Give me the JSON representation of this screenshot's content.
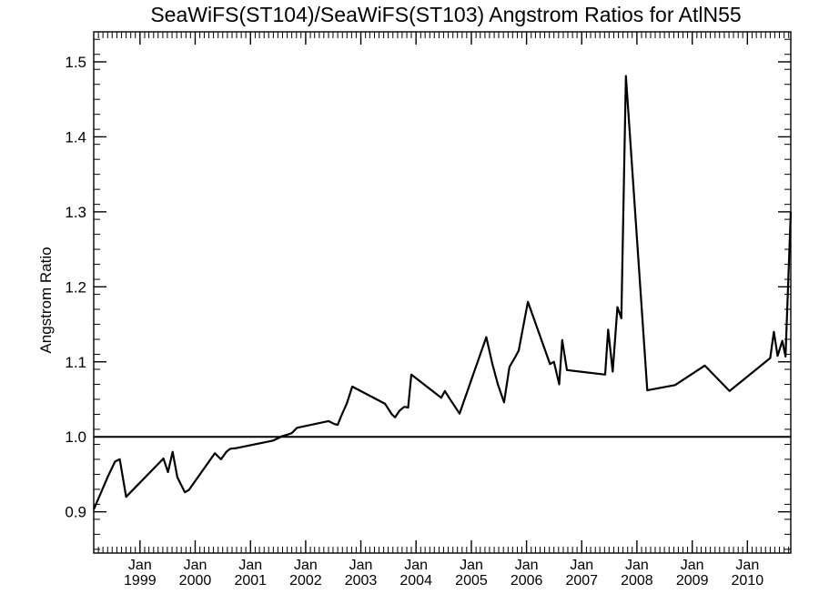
{
  "chart_data": {
    "type": "line",
    "title": "SeaWiFS(ST104)/SeaWiFS(ST103)  Angstrom Ratios for AtlN55",
    "ylabel": "Angstrom Ratio",
    "xlabel": "",
    "xlim": [
      "1998-03-01",
      "2010-10-15"
    ],
    "ylim": [
      0.845,
      1.54
    ],
    "yticks": [
      0.9,
      1.0,
      1.1,
      1.2,
      1.3,
      1.4,
      1.5
    ],
    "ytick_labels": [
      "0.9",
      "1.0",
      "1.1",
      "1.2",
      "1.3",
      "1.4",
      "1.5"
    ],
    "xticks": [
      {
        "date": "1999-01-01",
        "month": "Jan",
        "year": "1999"
      },
      {
        "date": "2000-01-01",
        "month": "Jan",
        "year": "2000"
      },
      {
        "date": "2001-01-01",
        "month": "Jan",
        "year": "2001"
      },
      {
        "date": "2002-01-01",
        "month": "Jan",
        "year": "2002"
      },
      {
        "date": "2003-01-01",
        "month": "Jan",
        "year": "2003"
      },
      {
        "date": "2004-01-01",
        "month": "Jan",
        "year": "2004"
      },
      {
        "date": "2005-01-01",
        "month": "Jan",
        "year": "2005"
      },
      {
        "date": "2006-01-01",
        "month": "Jan",
        "year": "2006"
      },
      {
        "date": "2007-01-01",
        "month": "Jan",
        "year": "2007"
      },
      {
        "date": "2008-01-01",
        "month": "Jan",
        "year": "2008"
      },
      {
        "date": "2009-01-01",
        "month": "Jan",
        "year": "2009"
      },
      {
        "date": "2010-01-01",
        "month": "Jan",
        "year": "2010"
      }
    ],
    "reference_line": 1.0,
    "grid": false,
    "series": [
      {
        "x": [
          "1998-03-01",
          "1998-06-05",
          "1998-07-20",
          "1998-08-20",
          "1998-10-01",
          "1999-06-05",
          "1999-07-05",
          "1999-08-05",
          "1999-09-05",
          "1999-10-25",
          "1999-11-20",
          "2000-05-10",
          "2000-06-20",
          "2000-07-25",
          "2000-08-20",
          "2000-10-01",
          "2001-06-01",
          "2001-08-01",
          "2001-09-05",
          "2001-10-01",
          "2001-11-05",
          "2002-06-01",
          "2002-07-10",
          "2002-08-01",
          "2002-08-25",
          "2002-10-01",
          "2002-11-05",
          "2003-06-10",
          "2003-07-25",
          "2003-08-15",
          "2003-09-15",
          "2003-10-15",
          "2003-11-10",
          "2003-12-01",
          "2004-06-15",
          "2004-07-10",
          "2004-08-10",
          "2004-10-15",
          "2005-04-10",
          "2005-05-20",
          "2005-06-25",
          "2005-08-05",
          "2005-09-10",
          "2005-10-20",
          "2005-11-10",
          "2006-01-10",
          "2006-06-05",
          "2006-07-01",
          "2006-08-05",
          "2006-08-25",
          "2006-09-25",
          "2007-06-05",
          "2007-06-25",
          "2007-07-25",
          "2007-08-25",
          "2007-09-20",
          "2007-10-20",
          "2008-03-10",
          "2008-09-10",
          "2009-03-25",
          "2009-09-05",
          "2010-06-01",
          "2010-06-25",
          "2010-07-20",
          "2010-08-20",
          "2010-09-10",
          "2010-10-15"
        ],
        "y": [
          0.903,
          0.948,
          0.967,
          0.97,
          0.92,
          0.971,
          0.953,
          0.98,
          0.946,
          0.926,
          0.929,
          0.978,
          0.97,
          0.98,
          0.984,
          0.985,
          0.995,
          1.001,
          1.003,
          1.005,
          1.012,
          1.021,
          1.017,
          1.016,
          1.028,
          1.045,
          1.067,
          1.044,
          1.03,
          1.026,
          1.035,
          1.04,
          1.039,
          1.083,
          1.052,
          1.061,
          1.051,
          1.031,
          1.133,
          1.097,
          1.07,
          1.046,
          1.093,
          1.107,
          1.115,
          1.18,
          1.097,
          1.1,
          1.07,
          1.129,
          1.089,
          1.083,
          1.143,
          1.087,
          1.173,
          1.158,
          1.481,
          1.062,
          1.069,
          1.095,
          1.061,
          1.105,
          1.14,
          1.108,
          1.128,
          1.107,
          1.3
        ]
      }
    ]
  }
}
